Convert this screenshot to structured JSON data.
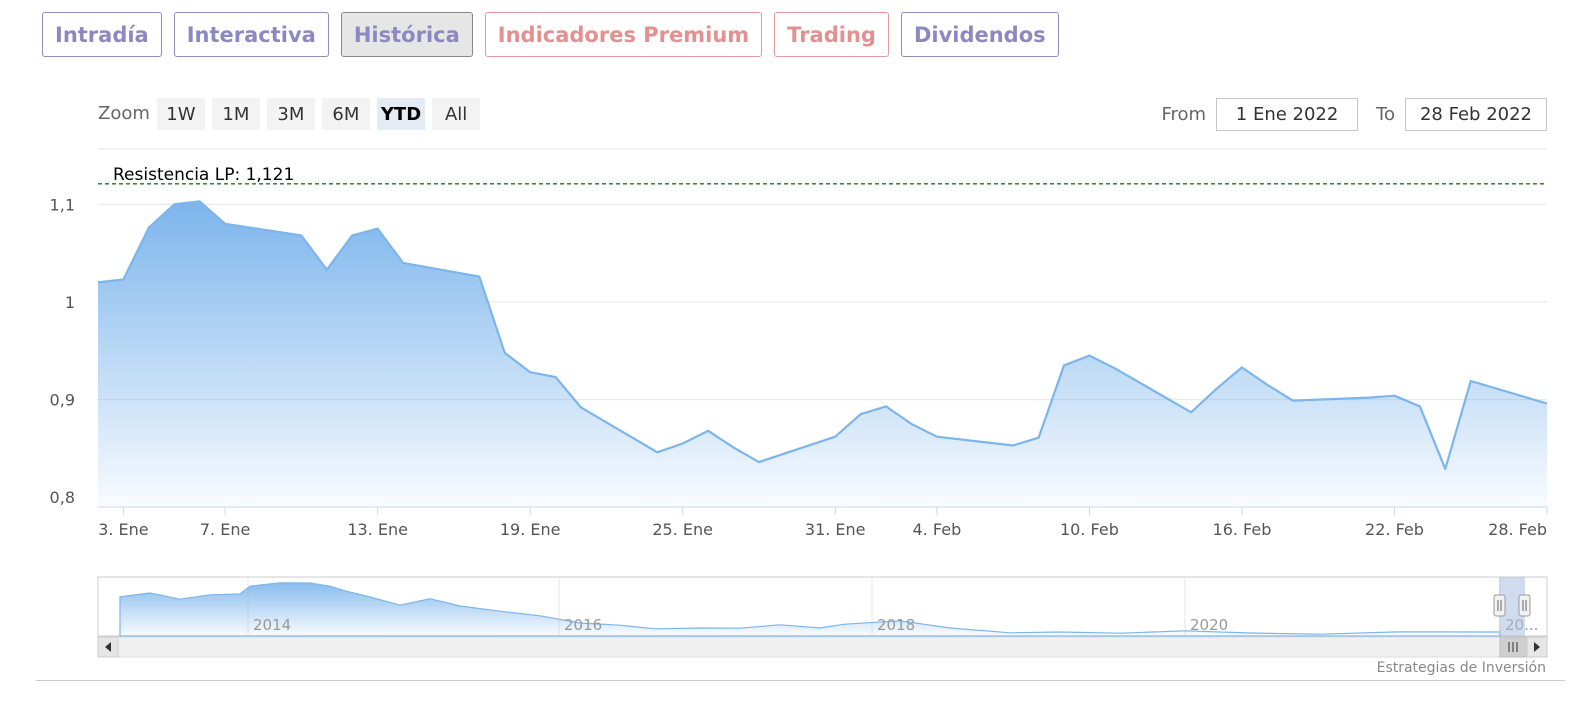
{
  "tabs": [
    {
      "label": "Intradía",
      "variant": "normal"
    },
    {
      "label": "Interactiva",
      "variant": "normal"
    },
    {
      "label": "Histórica",
      "variant": "active"
    },
    {
      "label": "Indicadores Premium",
      "variant": "premium"
    },
    {
      "label": "Trading",
      "variant": "premium"
    },
    {
      "label": "Dividendos",
      "variant": "normal"
    }
  ],
  "zoom": {
    "label": "Zoom",
    "buttons": [
      "1W",
      "1M",
      "3M",
      "6M",
      "YTD",
      "All"
    ],
    "selected": "YTD"
  },
  "range": {
    "from_label": "From",
    "from_value": "1 Ene 2022",
    "to_label": "To",
    "to_value": "28 Feb 2022"
  },
  "credits": "Estrategias de Inversión",
  "colors": {
    "series": "#7cb5ec",
    "resistance": "#1f7a1f",
    "tab_text": "#8c89c0",
    "tab_premium": "#e39090"
  },
  "chart_data": {
    "type": "area",
    "title": "",
    "xlabel": "",
    "ylabel": "",
    "ylim": [
      0.79,
      1.13
    ],
    "yticks": [
      {
        "value": 1.1,
        "label": "1,1"
      },
      {
        "value": 1.0,
        "label": "1"
      },
      {
        "value": 0.9,
        "label": "0,9"
      },
      {
        "value": 0.8,
        "label": "0,8"
      }
    ],
    "xlim": [
      "2022-01-02",
      "2022-02-28"
    ],
    "xticks": [
      {
        "date": "2022-01-03",
        "label": "3. Ene"
      },
      {
        "date": "2022-01-07",
        "label": "7. Ene"
      },
      {
        "date": "2022-01-13",
        "label": "13. Ene"
      },
      {
        "date": "2022-01-19",
        "label": "19. Ene"
      },
      {
        "date": "2022-01-25",
        "label": "25. Ene"
      },
      {
        "date": "2022-01-31",
        "label": "31. Ene"
      },
      {
        "date": "2022-02-04",
        "label": "4. Feb"
      },
      {
        "date": "2022-02-10",
        "label": "10. Feb"
      },
      {
        "date": "2022-02-16",
        "label": "16. Feb"
      },
      {
        "date": "2022-02-22",
        "label": "22. Feb"
      },
      {
        "date": "2022-02-28",
        "label": "28. Feb"
      }
    ],
    "resistance": {
      "label": "Resistencia LP: 1,121",
      "value": 1.121
    },
    "grid": true,
    "x": [
      "2022-01-02",
      "2022-01-03",
      "2022-01-04",
      "2022-01-05",
      "2022-01-06",
      "2022-01-07",
      "2022-01-10",
      "2022-01-11",
      "2022-01-12",
      "2022-01-13",
      "2022-01-14",
      "2022-01-17",
      "2022-01-18",
      "2022-01-19",
      "2022-01-20",
      "2022-01-21",
      "2022-01-24",
      "2022-01-25",
      "2022-01-26",
      "2022-01-27",
      "2022-01-28",
      "2022-01-31",
      "2022-02-01",
      "2022-02-02",
      "2022-02-03",
      "2022-02-04",
      "2022-02-07",
      "2022-02-08",
      "2022-02-09",
      "2022-02-10",
      "2022-02-11",
      "2022-02-14",
      "2022-02-15",
      "2022-02-16",
      "2022-02-17",
      "2022-02-18",
      "2022-02-21",
      "2022-02-22",
      "2022-02-23",
      "2022-02-24",
      "2022-02-25",
      "2022-02-28"
    ],
    "series": [
      {
        "values": [
          1.02,
          1.023,
          1.076,
          1.1,
          1.103,
          1.08,
          1.068,
          1.033,
          1.068,
          1.075,
          1.04,
          1.026,
          0.948,
          0.928,
          0.923,
          0.892,
          0.846,
          0.855,
          0.868,
          0.851,
          0.836,
          0.862,
          0.885,
          0.893,
          0.875,
          0.862,
          0.853,
          0.861,
          0.935,
          0.945,
          0.932,
          0.887,
          0.911,
          0.933,
          0.915,
          0.899,
          0.902,
          0.904,
          0.893,
          0.829,
          0.919,
          0.896
        ]
      }
    ],
    "navigator": {
      "xticks": [
        "2014",
        "2016",
        "2018",
        "2020",
        "20..."
      ]
    }
  }
}
